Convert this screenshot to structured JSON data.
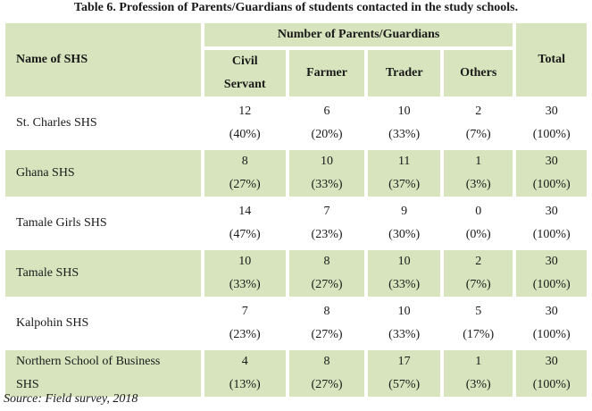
{
  "caption": "Table 6. Profession of Parents/Guardians of students contacted in the study schools.",
  "headers": {
    "name": "Name of SHS",
    "group": "Number of Parents/Guardians",
    "civil_line1": "Civil",
    "civil_line2": "Servant",
    "farmer": "Farmer",
    "trader": "Trader",
    "others": "Others",
    "total": "Total"
  },
  "rows": [
    {
      "name_line1": "St. Charles SHS",
      "name_line2": "",
      "civil": "12",
      "civil_pct": "(40%)",
      "farmer": "6",
      "farmer_pct": "(20%)",
      "trader": "10",
      "trader_pct": "(33%)",
      "others": "2",
      "others_pct": "(7%)",
      "total": "30",
      "total_pct": "(100%)"
    },
    {
      "name_line1": "Ghana SHS",
      "name_line2": "",
      "civil": "8",
      "civil_pct": "(27%)",
      "farmer": "10",
      "farmer_pct": "(33%)",
      "trader": "11",
      "trader_pct": "(37%)",
      "others": "1",
      "others_pct": "(3%)",
      "total": "30",
      "total_pct": "(100%)"
    },
    {
      "name_line1": "Tamale Girls SHS",
      "name_line2": "",
      "civil": "14",
      "civil_pct": "(47%)",
      "farmer": "7",
      "farmer_pct": "(23%)",
      "trader": "9",
      "trader_pct": "(30%)",
      "others": "0",
      "others_pct": "(0%)",
      "total": "30",
      "total_pct": "(100%)"
    },
    {
      "name_line1": "Tamale SHS",
      "name_line2": "",
      "civil": "10",
      "civil_pct": "(33%)",
      "farmer": "8",
      "farmer_pct": "(27%)",
      "trader": "10",
      "trader_pct": "(33%)",
      "others": "2",
      "others_pct": "(7%)",
      "total": "30",
      "total_pct": "(100%)"
    },
    {
      "name_line1": "Kalpohin SHS",
      "name_line2": "",
      "civil": "7",
      "civil_pct": "(23%)",
      "farmer": "8",
      "farmer_pct": "(27%)",
      "trader": "10",
      "trader_pct": "(33%)",
      "others": "5",
      "others_pct": "(17%)",
      "total": "30",
      "total_pct": "(100%)"
    },
    {
      "name_line1": "Northern School of Business",
      "name_line2": "SHS",
      "civil": "4",
      "civil_pct": "(13%)",
      "farmer": "8",
      "farmer_pct": "(27%)",
      "trader": "17",
      "trader_pct": "(57%)",
      "others": "1",
      "others_pct": "(3%)",
      "total": "30",
      "total_pct": "(100%)"
    }
  ],
  "source": "Source: Field survey, 2018",
  "colors": {
    "header_bg": "#d7e4bd",
    "band_bg": "#d7e4bd",
    "border": "#c3d69b"
  }
}
